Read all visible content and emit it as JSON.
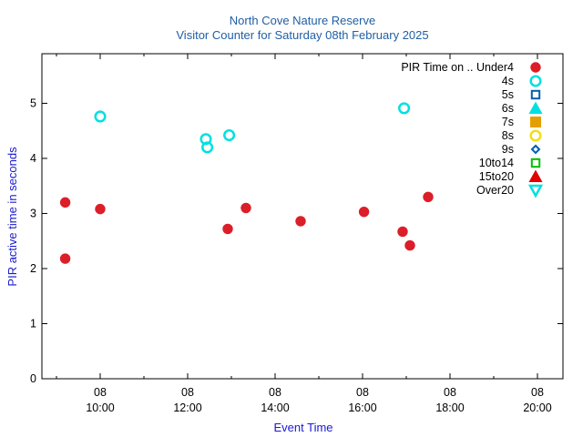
{
  "chart_data": {
    "type": "scatter",
    "title": "North Cove Nature Reserve",
    "subtitle": "Visitor Counter for Saturday 08th February 2025",
    "xlabel": "Event Time",
    "ylabel": "PIR active time in seconds",
    "xlim": [
      "08 08:40",
      "08 20:35"
    ],
    "ylim": [
      0,
      5.9
    ],
    "x_ticks": [
      {
        "value": "08 10:00",
        "day": "08",
        "time": "10:00"
      },
      {
        "value": "08 12:00",
        "day": "08",
        "time": "12:00"
      },
      {
        "value": "08 14:00",
        "day": "08",
        "time": "14:00"
      },
      {
        "value": "08 16:00",
        "day": "08",
        "time": "16:00"
      },
      {
        "value": "08 18:00",
        "day": "08",
        "time": "18:00"
      },
      {
        "value": "08 20:00",
        "day": "08",
        "time": "20:00"
      }
    ],
    "y_ticks": [
      "0",
      "1",
      "2",
      "3",
      "4",
      "5"
    ],
    "grid": false,
    "legend_position": "top-right",
    "legend_title": "PIR Time on ..",
    "series": [
      {
        "name": "Under4",
        "marker": "filled-circle",
        "color": "#dc1e28",
        "points": [
          {
            "x": "08 09:12",
            "y": 2.18
          },
          {
            "x": "08 09:12",
            "y": 3.2
          },
          {
            "x": "08 10:00",
            "y": 3.08
          },
          {
            "x": "08 12:55",
            "y": 2.72
          },
          {
            "x": "08 13:20",
            "y": 3.1
          },
          {
            "x": "08 14:35",
            "y": 2.86
          },
          {
            "x": "08 16:02",
            "y": 3.03
          },
          {
            "x": "08 16:55",
            "y": 2.67
          },
          {
            "x": "08 17:05",
            "y": 2.42
          },
          {
            "x": "08 17:30",
            "y": 3.3
          }
        ]
      },
      {
        "name": "4s",
        "marker": "open-circle",
        "color": "#00e0e0",
        "points": [
          {
            "x": "08 10:00",
            "y": 4.76
          },
          {
            "x": "08 12:25",
            "y": 4.35
          },
          {
            "x": "08 12:27",
            "y": 4.2
          },
          {
            "x": "08 12:57",
            "y": 4.42
          },
          {
            "x": "08 16:57",
            "y": 4.91
          }
        ]
      },
      {
        "name": "5s",
        "marker": "open-square",
        "color": "#0060ad",
        "points": []
      },
      {
        "name": "6s",
        "marker": "filled-triangle-up",
        "color": "#00e0e0",
        "points": []
      },
      {
        "name": "7s",
        "marker": "filled-square",
        "color": "#e69f00",
        "points": []
      },
      {
        "name": "8s",
        "marker": "open-circle",
        "color": "#f0e010",
        "points": []
      },
      {
        "name": "9s",
        "marker": "open-diamond",
        "color": "#0060ad",
        "points": []
      },
      {
        "name": "10to14",
        "marker": "open-square",
        "color": "#00c000",
        "points": []
      },
      {
        "name": "15to20",
        "marker": "filled-triangle-up",
        "color": "#e00000",
        "points": []
      },
      {
        "name": "Over20",
        "marker": "open-triangle-down",
        "color": "#00e0e0",
        "points": []
      }
    ]
  }
}
